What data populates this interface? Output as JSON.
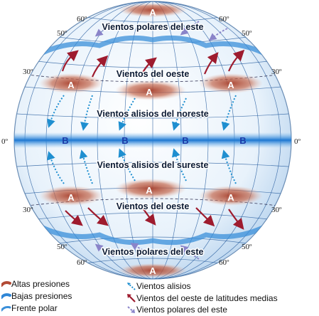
{
  "latitudes": {
    "north60_left": "60º",
    "north60_right": "60º",
    "north50_left": "50º",
    "north50_right": "50º",
    "north30_left": "30º",
    "north30_right": "30º",
    "equator_left": "0º",
    "equator_right": "0º",
    "south30_left": "30º",
    "south30_right": "30º",
    "south50_left": "50º",
    "south50_right": "50º",
    "south60_left": "60º",
    "south60_right": "60º"
  },
  "bands": {
    "polar_east_north": "Vientos polares del este",
    "westerlies_north": "Vientos del oeste",
    "trades_northeast": "Vientos alisios del noreste",
    "trades_southeast": "Vientos alisios del sureste",
    "westerlies_south": "Vientos del oeste",
    "polar_east_south": "Vientos polares del este"
  },
  "pressure": {
    "high": "A",
    "low": "B"
  },
  "legend": {
    "high_pressure": "Altas presiones",
    "low_pressure": "Bajas presiones",
    "polar_front": "Frente polar",
    "trade_winds": "Vientos alisios",
    "westerlies": "Vientos del oeste de latitudes medias",
    "polar_easterlies": "Vientos polares del este"
  },
  "colors": {
    "high_pressure": "#b24a35",
    "low_pressure": "#2f86d6",
    "polar_front": "#3a8fd9",
    "trade_winds": "#1f8fd0",
    "westerlies": "#9e1b2e",
    "polar_easterlies": "#8a84c9"
  }
}
